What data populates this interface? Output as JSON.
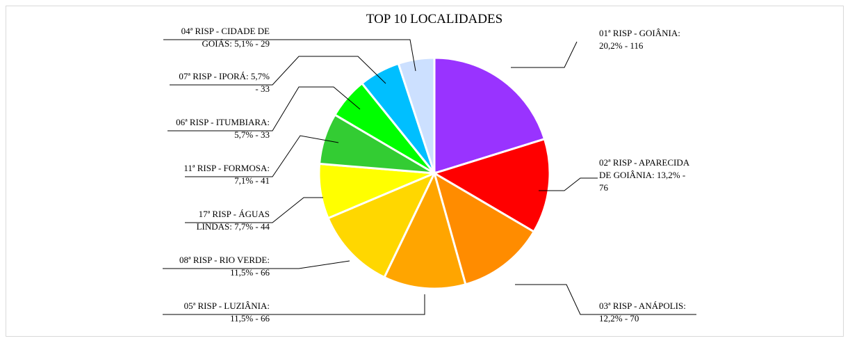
{
  "chart_data": {
    "type": "pie",
    "title": "TOP 10 LOCALIDADES",
    "slices": [
      {
        "name": "01ª RISP - GOIÂNIA",
        "percent": "20,2%",
        "value": 116,
        "color": "#9933FF",
        "label_lines": [
          "01ª RISP - GOIÂNIA:",
          "20,2% - 116"
        ]
      },
      {
        "name": "02ª RISP - APARECIDA DE GOIÂNIA",
        "percent": "13,2%",
        "value": 76,
        "color": "#FF0000",
        "label_lines": [
          "02ª RISP - APARECIDA",
          "DE GOIÂNIA: 13,2% -",
          "76"
        ]
      },
      {
        "name": "03ª RISP - ANÁPOLIS",
        "percent": "12,2%",
        "value": 70,
        "color": "#FF8C00",
        "label_lines": [
          "03ª RISP - ANÁPOLIS:",
          "12,2% - 70"
        ]
      },
      {
        "name": "05ª RISP - LUZIÂNIA",
        "percent": "11,5%",
        "value": 66,
        "color": "#FFA500",
        "label_lines": [
          "05ª RISP - LUZIÂNIA:",
          "11,5% - 66"
        ]
      },
      {
        "name": "08ª RISP - RIO VERDE",
        "percent": "11,5%",
        "value": 66,
        "color": "#FFD700",
        "label_lines": [
          "08ª RISP - RIO VERDE:",
          "11,5% - 66"
        ]
      },
      {
        "name": "17ª RISP - ÁGUAS LINDAS",
        "percent": "7,7%",
        "value": 44,
        "color": "#FFFF00",
        "label_lines": [
          "17ª RISP - ÁGUAS",
          "LINDAS: 7,7% - 44"
        ]
      },
      {
        "name": "11ª RISP - FORMOSA",
        "percent": "7,1%",
        "value": 41,
        "color": "#33CC33",
        "label_lines": [
          "11ª RISP - FORMOSA:",
          "7,1% - 41"
        ]
      },
      {
        "name": "06ª RISP - ITUMBIARA",
        "percent": "5,7%",
        "value": 33,
        "color": "#00FF00",
        "label_lines": [
          "06ª RISP - ITUMBIARA:",
          "5,7% - 33"
        ]
      },
      {
        "name": "07ª RISP - IPORÁ",
        "percent": "5,7%",
        "value": 33,
        "color": "#00BFFF",
        "label_lines": [
          "07ª RISP - IPORÁ: 5,7%",
          "- 33"
        ]
      },
      {
        "name": "04ª RISP - CIDADE DE GOIÁS",
        "percent": "5,1%",
        "value": 29,
        "color": "#CCE0FF",
        "label_lines": [
          "04ª RISP - CIDADE DE",
          "GOIÁS: 5,1% - 29"
        ]
      }
    ],
    "legend": "none",
    "labels": "outside with leader lines"
  }
}
